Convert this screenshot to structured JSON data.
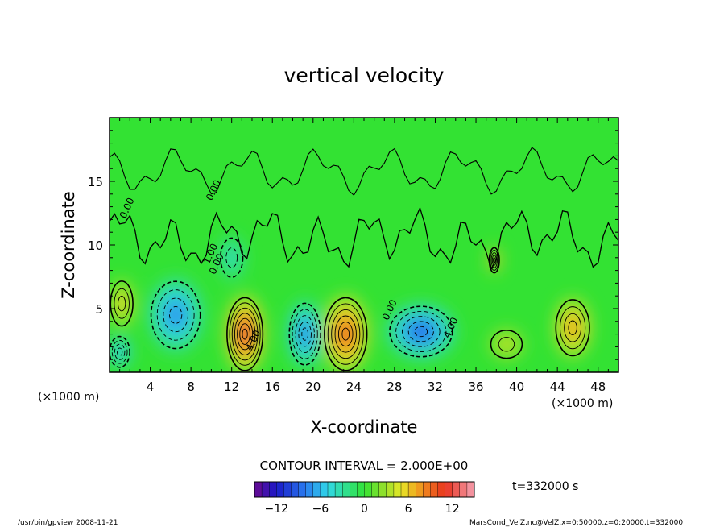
{
  "chart_data": {
    "type": "heatmap",
    "title": "vertical velocity",
    "xlabel": "X-coordinate",
    "ylabel": "Z-coordinate",
    "x_unit_left": "(×1000 m)",
    "x_unit_right": "(×1000 m)",
    "xlim": [
      0,
      50
    ],
    "ylim": [
      0,
      20
    ],
    "x_ticks": [
      4,
      8,
      12,
      16,
      20,
      24,
      28,
      32,
      36,
      40,
      44,
      48
    ],
    "y_ticks": [
      5,
      10,
      15
    ],
    "contour_interval_text": "CONTOUR INTERVAL = 2.000E+00",
    "contour_labels": [
      {
        "text": "0.00",
        "x": 10.5,
        "y": 14.2
      },
      {
        "text": "0.00",
        "x": 2.0,
        "y": 12.8
      },
      {
        "text": "1.00",
        "x": 10.2,
        "y": 9.2
      },
      {
        "text": "0.00",
        "x": 10.8,
        "y": 8.4
      },
      {
        "text": "4.00",
        "x": 14.4,
        "y": 2.4
      },
      {
        "text": "0.00",
        "x": 27.8,
        "y": 4.8
      },
      {
        "text": "4.00",
        "x": 33.8,
        "y": 3.4
      }
    ],
    "colorbar": {
      "min": -15,
      "max": 15,
      "step": 1,
      "ticks": [
        -12,
        -6,
        0,
        6,
        12
      ]
    },
    "cells": [
      {
        "x": 13.3,
        "z": 3.0,
        "value": 13,
        "sx": 1.6,
        "sz": 2.6
      },
      {
        "x": 23.2,
        "z": 3.0,
        "value": 11,
        "sx": 1.9,
        "sz": 2.6
      },
      {
        "x": 45.5,
        "z": 3.5,
        "value": 8,
        "sx": 1.5,
        "sz": 2.0
      },
      {
        "x": 37.8,
        "z": 8.8,
        "value": 9,
        "sx": 0.45,
        "sz": 0.9
      },
      {
        "x": 1.2,
        "z": 5.4,
        "value": 6,
        "sx": 1.0,
        "sz": 1.6
      },
      {
        "x": 39.0,
        "z": 2.2,
        "value": 4,
        "sx": 1.4,
        "sz": 1.0
      },
      {
        "x": 6.5,
        "z": 4.5,
        "value": -8,
        "sx": 2.2,
        "sz": 2.4
      },
      {
        "x": 19.2,
        "z": 3.0,
        "value": -9,
        "sx": 1.4,
        "sz": 2.2
      },
      {
        "x": 30.6,
        "z": 3.2,
        "value": -10,
        "sx": 2.8,
        "sz": 1.8
      },
      {
        "x": 1.0,
        "z": 1.6,
        "value": -7,
        "sx": 0.9,
        "sz": 1.1
      },
      {
        "x": 12.0,
        "z": 9.0,
        "value": -4,
        "sx": 1.0,
        "sz": 1.4
      }
    ],
    "time_label": "t=332000 s",
    "footer_left": "/usr/bin/gpview   2008-11-21",
    "footer_right": "MarsCond_VelZ.nc@VelZ,x=0:50000,z=0:20000,t=332000"
  }
}
